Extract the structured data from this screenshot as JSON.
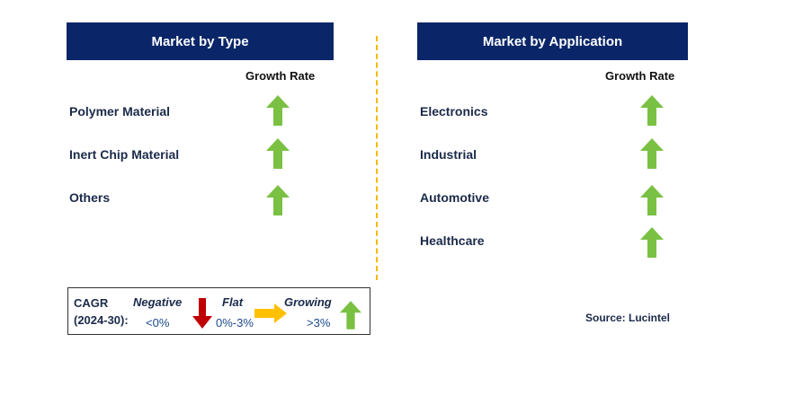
{
  "type_panel": {
    "title": "Market by Type",
    "growth_header": "Growth Rate",
    "items": [
      {
        "label": "Polymer Material",
        "trend": "growing"
      },
      {
        "label": "Inert Chip Material",
        "trend": "growing"
      },
      {
        "label": "Others",
        "trend": "growing"
      }
    ]
  },
  "application_panel": {
    "title": "Market by Application",
    "growth_header": "Growth Rate",
    "items": [
      {
        "label": "Electronics",
        "trend": "growing"
      },
      {
        "label": "Industrial",
        "trend": "growing"
      },
      {
        "label": "Automotive",
        "trend": "growing"
      },
      {
        "label": "Healthcare",
        "trend": "growing"
      }
    ]
  },
  "legend": {
    "cagr_label": "CAGR",
    "period": "(2024-30):",
    "negative_label": "Negative",
    "negative_range": "<0%",
    "flat_label": "Flat",
    "flat_range": "0%-3%",
    "growing_label": "Growing",
    "growing_range": ">3%"
  },
  "source": "Source: Lucintel",
  "colors": {
    "header_bg": "#0a2668",
    "up_arrow": "#7ac143",
    "down_arrow": "#c00000",
    "flat_arrow": "#ffc000",
    "divider": "#f5b800"
  }
}
